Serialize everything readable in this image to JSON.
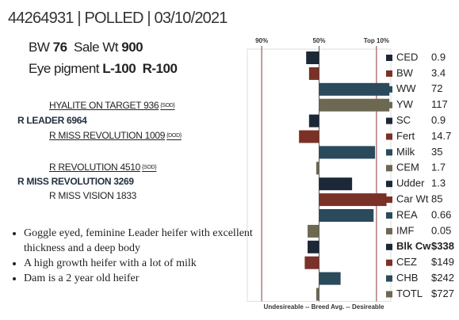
{
  "header": {
    "title": "44264931 | POLLED | 03/10/2021"
  },
  "stats": {
    "bw_label": "BW",
    "bw": 76,
    "sale_wt_label": "Sale Wt",
    "sale_wt": 900,
    "eye_label": "Eye pigment",
    "eye_left": "L-100",
    "eye_right": "R-100"
  },
  "pedigree": [
    {
      "name": "HYALITE ON TARGET 936",
      "tag": "{SOD}"
    },
    {
      "name": "R LEADER 6964"
    },
    {
      "name": "R MISS REVOLUTION 1009",
      "tag": "{DOD}"
    },
    {
      "name": "R REVOLUTION 4510",
      "tag": "{SOD}"
    },
    {
      "name": "R MISS REVOLUTION 3269"
    },
    {
      "name": "R MISS VISION 1833"
    }
  ],
  "notes": [
    "Goggle eyed, feminine Leader heifer with excellent thickness and a deep body",
    "A high growth heifer with a lot of milk",
    "Dam is a 2 year old heifer"
  ],
  "chart_data": {
    "type": "bar",
    "orientation": "horizontal",
    "categories": [
      "CED",
      "BW",
      "WW",
      "YW",
      "SC",
      "Fert",
      "Milk",
      "CEM",
      "Udder",
      "Car Wt",
      "REA",
      "IMF",
      "Blk Cw",
      "CEZ",
      "CHB",
      "TOTL"
    ],
    "values": [
      59,
      57,
      1,
      1,
      57,
      64,
      11,
      52,
      27,
      3,
      12,
      58,
      58,
      60,
      35,
      52
    ],
    "epds": [
      0.9,
      3.4,
      72,
      117,
      0.9,
      14.7,
      35,
      1.7,
      1.3,
      85,
      0.66,
      0.05,
      "$338",
      "$149",
      "$242",
      "$727"
    ],
    "colors": [
      "#1c2838",
      "#7a3128",
      "#2b4a5c",
      "#6d6852",
      "#1c2838",
      "#7a3128",
      "#2b4a5c",
      "#6d6852",
      "#1c2838",
      "#7a3128",
      "#2b4a5c",
      "#6d6852",
      "#1c2838",
      "#7a3128",
      "#2b4a5c",
      "#6d6852"
    ],
    "bold": "Blk Cw",
    "xlim": [
      100,
      0
    ],
    "xticks": [
      {
        "value": 90,
        "label": "90%"
      },
      {
        "value": 50,
        "label": "50%"
      },
      {
        "value": 10,
        "label": "Top 10%"
      }
    ],
    "xlabel": "Undesireable -- Breed Avg. -- Desireable"
  }
}
